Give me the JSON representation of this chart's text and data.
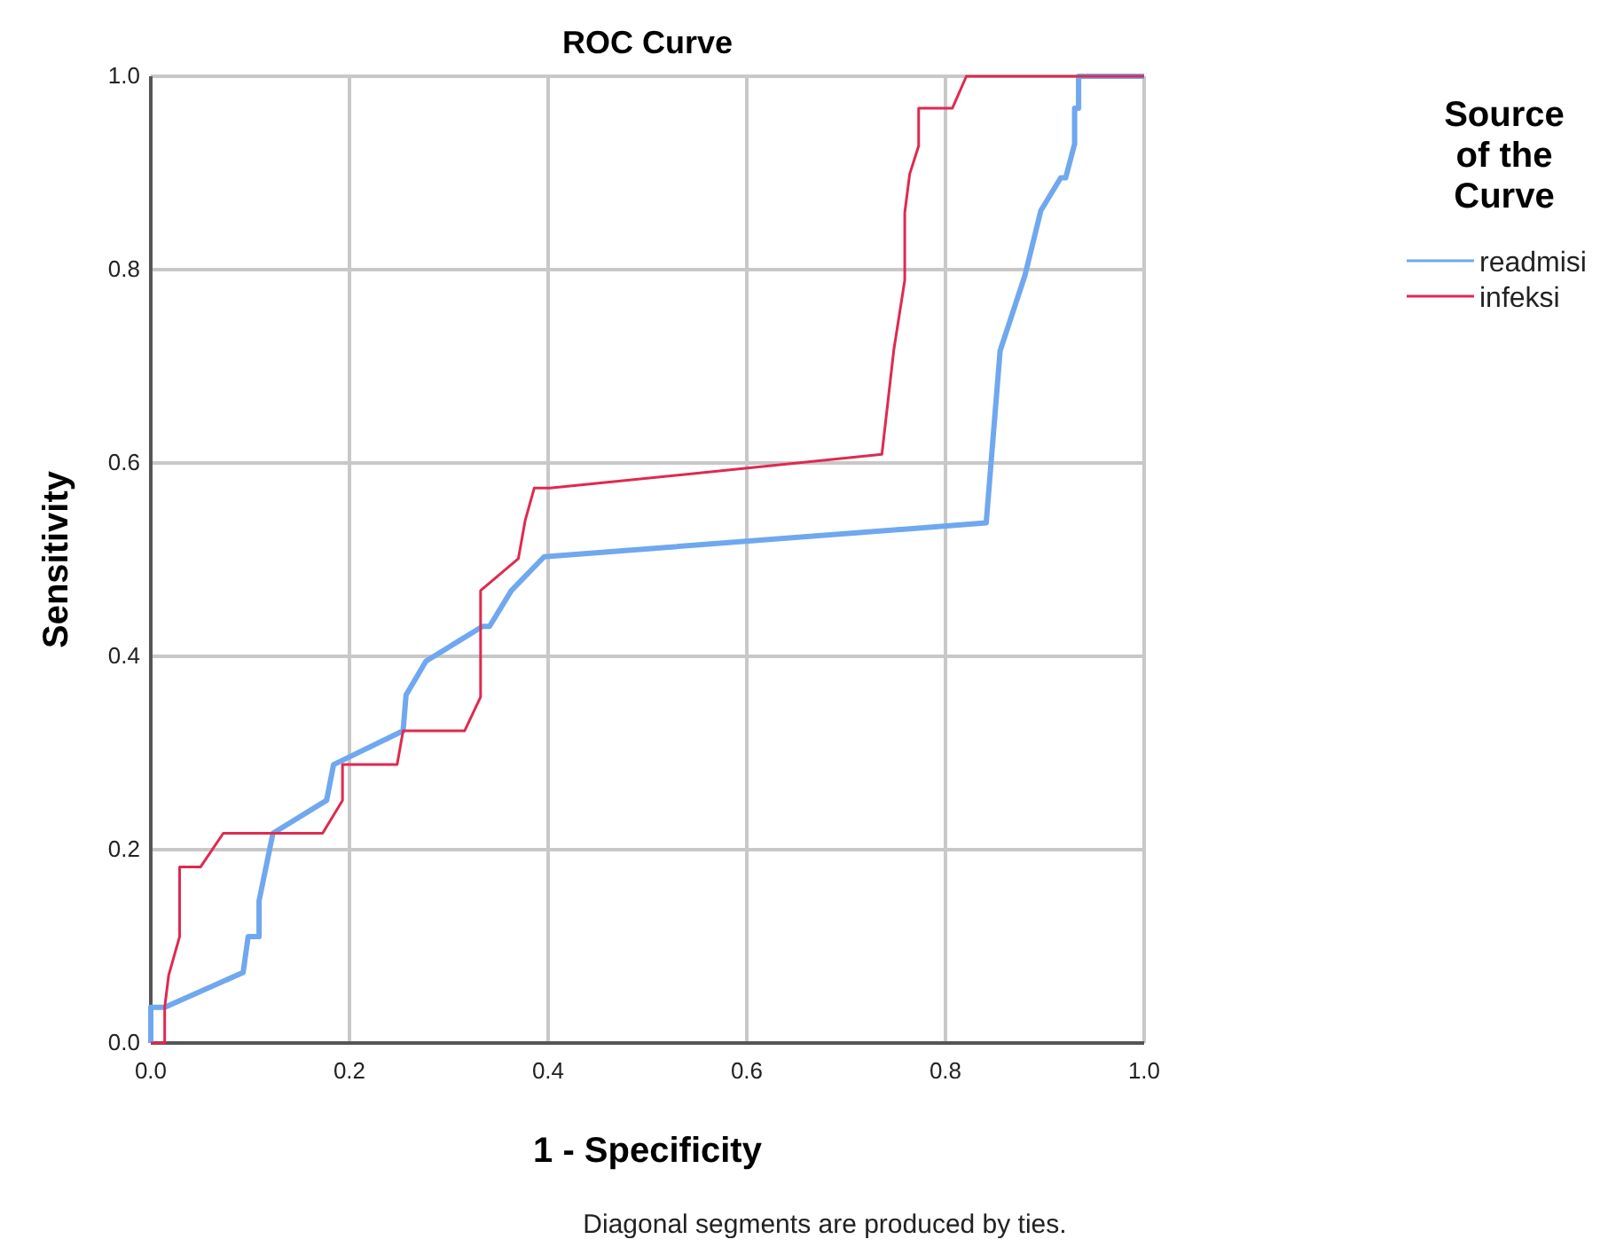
{
  "chart_data": {
    "type": "line",
    "title": "ROC Curve",
    "xlabel": "1 - Specificity",
    "ylabel": "Sensitivity",
    "legend_title": "Source of the Curve",
    "legend": "right",
    "grid": true,
    "line_style": "solid",
    "marker": "none",
    "xlim": [
      0,
      1
    ],
    "ylim": [
      0,
      1
    ],
    "xticks": [
      {
        "value": 0,
        "label": "0.0"
      },
      {
        "value": 0.2,
        "label": "0.2"
      },
      {
        "value": 0.4,
        "label": "0.4"
      },
      {
        "value": 0.6,
        "label": "0.6"
      },
      {
        "value": 0.8,
        "label": "0.8"
      },
      {
        "value": 1,
        "label": "1.0"
      }
    ],
    "yticks": [
      {
        "value": 0,
        "label": "0.0"
      },
      {
        "value": 0.2,
        "label": "0.2"
      },
      {
        "value": 0.4,
        "label": "0.4"
      },
      {
        "value": 0.6,
        "label": "0.6"
      },
      {
        "value": 0.8,
        "label": "0.8"
      },
      {
        "value": 1,
        "label": "1.0"
      }
    ],
    "series": [
      {
        "name": "readmisi",
        "color": "#6fa8ef",
        "x": [
          0,
          0,
          0.014,
          0.093,
          0.098,
          0.109,
          0.109,
          0.123,
          0.177,
          0.184,
          0.254,
          0.257,
          0.277,
          0.334,
          0.341,
          0.363,
          0.396,
          0.841,
          0.855,
          0.88,
          0.896,
          0.916,
          0.921,
          0.93,
          0.93,
          0.934,
          0.934,
          1
        ],
        "values": [
          0,
          0.037,
          0.037,
          0.073,
          0.11,
          0.11,
          0.147,
          0.217,
          0.251,
          0.288,
          0.323,
          0.36,
          0.395,
          0.431,
          0.431,
          0.468,
          0.503,
          0.538,
          0.716,
          0.794,
          0.861,
          0.895,
          0.895,
          0.93,
          0.967,
          0.967,
          1,
          1
        ]
      },
      {
        "name": "infeksi",
        "color": "#e0294e",
        "x": [
          0,
          0.014,
          0.014,
          0.018,
          0.029,
          0.029,
          0.05,
          0.073,
          0.173,
          0.193,
          0.193,
          0.248,
          0.254,
          0.316,
          0.332,
          0.332,
          0.37,
          0.377,
          0.386,
          0.402,
          0.736,
          0.748,
          0.759,
          0.759,
          0.764,
          0.773,
          0.773,
          0.807,
          0.821,
          1
        ],
        "values": [
          0,
          0,
          0.037,
          0.07,
          0.11,
          0.182,
          0.182,
          0.217,
          0.217,
          0.251,
          0.288,
          0.288,
          0.323,
          0.323,
          0.358,
          0.468,
          0.501,
          0.541,
          0.574,
          0.574,
          0.609,
          0.717,
          0.789,
          0.859,
          0.899,
          0.928,
          0.967,
          0.967,
          1,
          1
        ]
      }
    ],
    "annotations": [
      "Diagonal segments are produced by ties."
    ]
  }
}
